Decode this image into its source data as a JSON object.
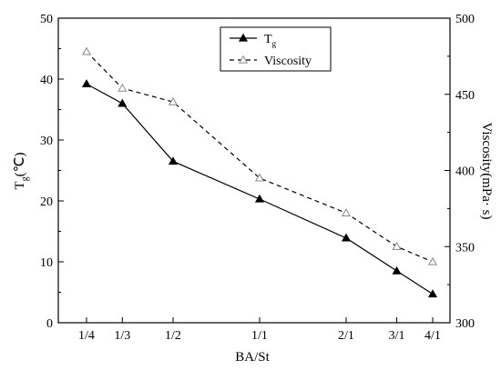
{
  "chart_data": {
    "type": "line",
    "categories": [
      "1/4",
      "1/3",
      "1/2",
      "1/1",
      "2/1",
      "3/1",
      "4/1"
    ],
    "x_positions": [
      0.25,
      0.333,
      0.5,
      1,
      2,
      3,
      4
    ],
    "xscale": "log",
    "xlabel": "BA/St",
    "ylabel_left": {
      "main": "T",
      "sub": "g",
      "unit": "(℃)"
    },
    "ylabel_right": "Viscosity(mPa· s)",
    "ylim_left": [
      0,
      50
    ],
    "ylim_right": [
      300,
      500
    ],
    "yticks_left": [
      0,
      10,
      20,
      30,
      40,
      50
    ],
    "yticks_right": [
      300,
      350,
      400,
      450,
      500
    ],
    "grid": false,
    "legend_position": "top-center",
    "series": [
      {
        "name": "T",
        "name_sub": "g",
        "axis": "left",
        "marker": "filled-triangle",
        "line": "solid",
        "values": [
          39.2,
          36.0,
          26.5,
          20.3,
          13.9,
          8.5,
          4.7
        ]
      },
      {
        "name": "Viscosity",
        "axis": "right",
        "marker": "open-triangle",
        "line": "dashed",
        "values": [
          478,
          454,
          445,
          395,
          372,
          350,
          340
        ]
      }
    ]
  }
}
